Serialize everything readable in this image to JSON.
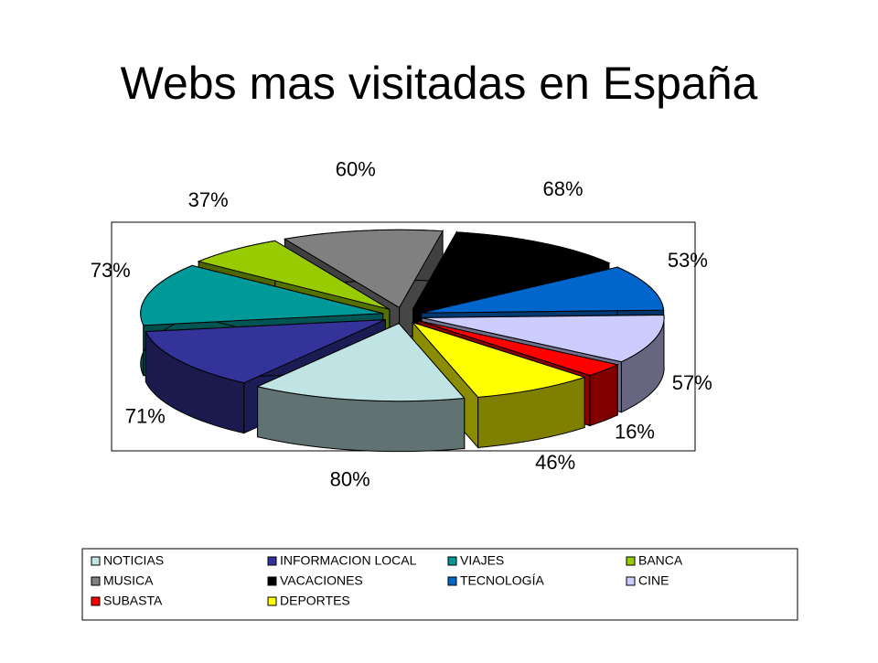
{
  "chart_data": {
    "type": "pie3d",
    "title": "Webs mas visitadas en España",
    "categories": [
      "NOTICIAS",
      "INFORMACION LOCAL",
      "VIAJES",
      "BANCA",
      "MUSICA",
      "VACACIONES",
      "TECNOLOGÍA",
      "CINE",
      "SUBASTA",
      "DEPORTES"
    ],
    "values": [
      80,
      71,
      73,
      37,
      60,
      68,
      53,
      57,
      16,
      46
    ],
    "value_labels": [
      "80%",
      "71%",
      "73%",
      "37%",
      "60%",
      "68%",
      "53%",
      "57%",
      "16%",
      "46%"
    ],
    "colors": [
      "#c0e4e4",
      "#333399",
      "#009999",
      "#99cc00",
      "#808080",
      "#000000",
      "#0066cc",
      "#ccccff",
      "#ff0000",
      "#ffff00"
    ]
  }
}
